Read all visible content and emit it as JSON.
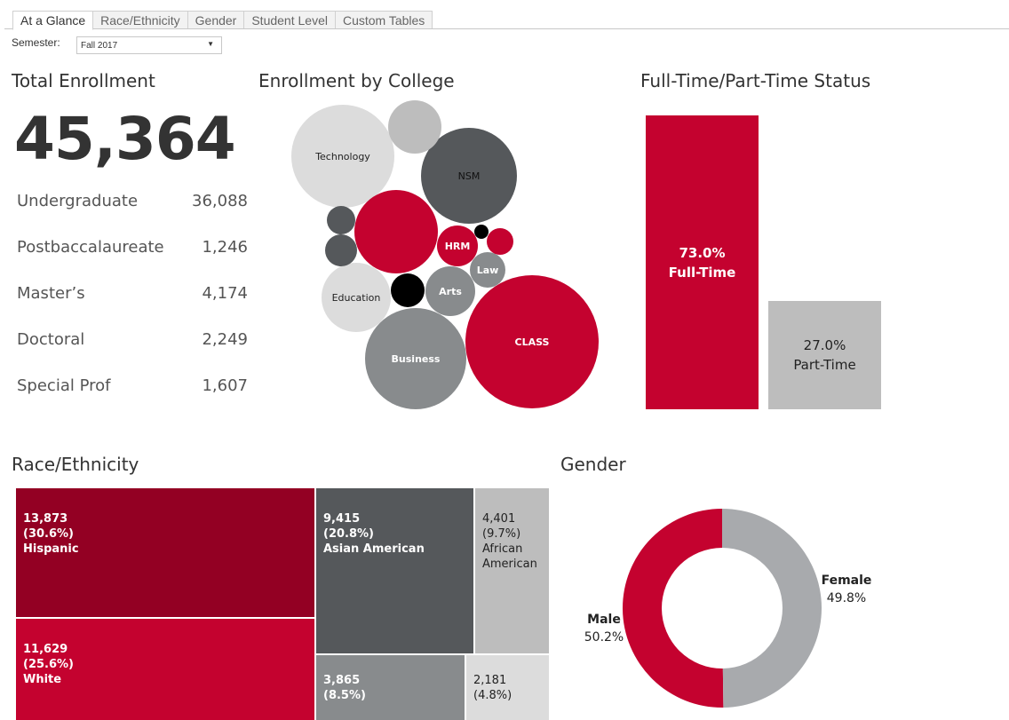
{
  "tabs": [
    {
      "label": "At a Glance",
      "active": true
    },
    {
      "label": "Race/Ethnicity"
    },
    {
      "label": "Gender"
    },
    {
      "label": "Student Level"
    },
    {
      "label": "Custom Tables"
    }
  ],
  "semester": {
    "label": "Semester:",
    "value": "Fall 2017"
  },
  "total": {
    "title": "Total Enrollment",
    "value": "45,364",
    "levels": [
      {
        "label": "Undergraduate",
        "value": "36,088"
      },
      {
        "label": "Postbaccalaureate",
        "value": "1,246"
      },
      {
        "label": "Master’s",
        "value": "4,174"
      },
      {
        "label": "Doctoral",
        "value": "2,249"
      },
      {
        "label": "Special Prof",
        "value": "1,607"
      }
    ]
  },
  "colors": {
    "red": "#c4022f",
    "dark_red": "#930023",
    "dark_gray": "#55585b",
    "gray": "#888b8d",
    "light_gray": "#bdbdbd",
    "lighter_gray": "#dcdcdc",
    "black": "#000000"
  },
  "college": {
    "title": "Enrollment by College"
  },
  "status": {
    "title": "Full-Time/Part-Time Status"
  },
  "race": {
    "title": "Race/Ethnicity"
  },
  "gender": {
    "title": "Gender"
  },
  "chart_data": [
    {
      "type": "bubble",
      "title": "Enrollment by College",
      "bubbles": [
        {
          "label": "CLASS",
          "color": "red"
        },
        {
          "label": "Business",
          "color": "gray"
        },
        {
          "label": "Technology",
          "color": "lighter_gray"
        },
        {
          "label": "NSM",
          "color": "dark_gray"
        },
        {
          "label": "",
          "color": "red"
        },
        {
          "label": "Education",
          "color": "lighter_gray"
        },
        {
          "label": "",
          "color": "light_gray"
        },
        {
          "label": "Arts",
          "color": "gray"
        },
        {
          "label": "HRM",
          "color": "red"
        },
        {
          "label": "Law",
          "color": "gray"
        },
        {
          "label": "",
          "color": "black"
        },
        {
          "label": "",
          "color": "dark_gray"
        },
        {
          "label": "",
          "color": "dark_gray"
        },
        {
          "label": "",
          "color": "red"
        },
        {
          "label": "",
          "color": "black"
        }
      ]
    },
    {
      "type": "bar",
      "title": "Full-Time/Part-Time Status",
      "categories": [
        "Full-Time",
        "Part-Time"
      ],
      "values": [
        73.0,
        27.0
      ],
      "labels": [
        "73.0%",
        "27.0%"
      ]
    },
    {
      "type": "treemap",
      "title": "Race/Ethnicity",
      "items": [
        {
          "label": "Hispanic",
          "value": "13,873",
          "pct": "(30.6%)"
        },
        {
          "label": "White",
          "value": "11,629",
          "pct": "(25.6%)"
        },
        {
          "label": "Asian American",
          "value": "9,415",
          "pct": "(20.8%)"
        },
        {
          "label": "African American",
          "value": "4,401",
          "pct": "(9.7%)"
        },
        {
          "label": "",
          "value": "3,865",
          "pct": "(8.5%)"
        },
        {
          "label": "",
          "value": "2,181",
          "pct": "(4.8%)"
        }
      ]
    },
    {
      "type": "pie",
      "title": "Gender",
      "donut": true,
      "slices": [
        {
          "label": "Male",
          "value": 50.2,
          "text": "50.2%"
        },
        {
          "label": "Female",
          "value": 49.8,
          "text": "49.8%"
        }
      ]
    }
  ]
}
